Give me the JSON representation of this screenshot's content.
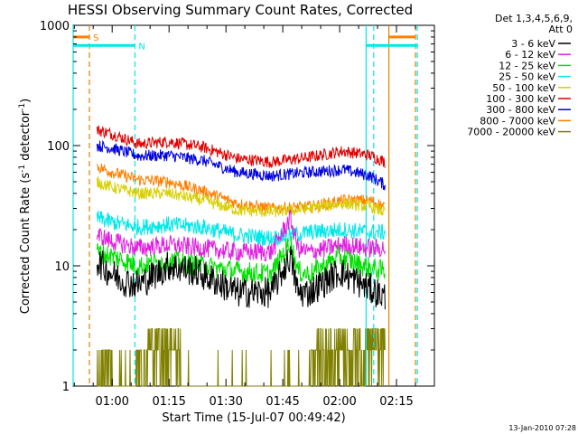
{
  "chart_data": {
    "type": "line",
    "title": "HESSI Observing Summary Count Rates, Corrected",
    "xlabel": "Start Time (15-Jul-07 00:49:42)",
    "ylabel_main": "Corrected Count Rate (s",
    "ylabel_sup1": "-1",
    "ylabel_mid": " detector",
    "ylabel_sup2": "-1",
    "ylabel_end": ")",
    "yscale": "log",
    "ylim": [
      1,
      1000
    ],
    "xlim": [
      "00:49:42",
      "02:25:00"
    ],
    "x_ticks": [
      "01:00",
      "01:15",
      "01:30",
      "01:45",
      "02:00",
      "02:15"
    ],
    "y_ticks": [
      "1",
      "10",
      "100",
      "1000"
    ],
    "footer_date": "13-Jan-2010 07:28",
    "legend": {
      "header1": "Det 1,3,4,5,6,9,",
      "header2": "Att 0",
      "placement": "right",
      "entries": [
        {
          "label": "3 - 6 keV",
          "color": "#000000"
        },
        {
          "label": "6 - 12 keV",
          "color": "#e020e0"
        },
        {
          "label": "12 - 25 keV",
          "color": "#00e000"
        },
        {
          "label": "25 - 50 keV",
          "color": "#00e8e8"
        },
        {
          "label": "50 - 100 keV",
          "color": "#d8d000"
        },
        {
          "label": "100 - 300 keV",
          "color": "#e00000"
        },
        {
          "label": "300 - 800 keV",
          "color": "#0000e0"
        },
        {
          "label": "800 - 7000 keV",
          "color": "#ff8000"
        },
        {
          "label": "7000 - 20000 keV",
          "color": "#808000"
        }
      ]
    },
    "time_range": [
      "00:56:00",
      "02:12:00"
    ],
    "series": [
      {
        "name": "100 - 300 keV",
        "color": "#e00000",
        "noise": 0.05,
        "knots": [
          [
            "00:56",
            135
          ],
          [
            "01:00",
            125
          ],
          [
            "01:07",
            103
          ],
          [
            "01:15",
            108
          ],
          [
            "01:24",
            97
          ],
          [
            "01:33",
            78
          ],
          [
            "01:42",
            73
          ],
          [
            "01:52",
            80
          ],
          [
            "02:01",
            90
          ],
          [
            "02:08",
            83
          ],
          [
            "02:12",
            73
          ]
        ]
      },
      {
        "name": "300 - 800 keV",
        "color": "#0000e0",
        "noise": 0.05,
        "knots": [
          [
            "00:56",
            100
          ],
          [
            "01:00",
            95
          ],
          [
            "01:07",
            82
          ],
          [
            "01:15",
            83
          ],
          [
            "01:24",
            75
          ],
          [
            "01:33",
            60
          ],
          [
            "01:42",
            56
          ],
          [
            "01:52",
            60
          ],
          [
            "02:01",
            63
          ],
          [
            "02:08",
            56
          ],
          [
            "02:12",
            47
          ]
        ]
      },
      {
        "name": "800 - 7000 keV",
        "color": "#ff8000",
        "noise": 0.05,
        "knots": [
          [
            "00:56",
            67
          ],
          [
            "01:00",
            60
          ],
          [
            "01:07",
            52
          ],
          [
            "01:15",
            50
          ],
          [
            "01:24",
            42
          ],
          [
            "01:33",
            33
          ],
          [
            "01:42",
            30
          ],
          [
            "01:52",
            31
          ],
          [
            "02:01",
            35
          ],
          [
            "02:08",
            35
          ],
          [
            "02:12",
            31
          ]
        ]
      },
      {
        "name": "50 - 100 keV",
        "color": "#d8d000",
        "noise": 0.05,
        "knots": [
          [
            "00:56",
            50
          ],
          [
            "01:00",
            45
          ],
          [
            "01:07",
            40
          ],
          [
            "01:15",
            40
          ],
          [
            "01:24",
            35
          ],
          [
            "01:33",
            29
          ],
          [
            "01:42",
            28
          ],
          [
            "01:52",
            30
          ],
          [
            "02:01",
            33
          ],
          [
            "02:08",
            31
          ],
          [
            "02:12",
            28
          ]
        ]
      },
      {
        "name": "25 - 50 keV",
        "color": "#00e8e8",
        "noise": 0.07,
        "knots": [
          [
            "00:56",
            25
          ],
          [
            "01:00",
            23
          ],
          [
            "01:07",
            21
          ],
          [
            "01:15",
            22
          ],
          [
            "01:24",
            21
          ],
          [
            "01:33",
            18
          ],
          [
            "01:42",
            17
          ],
          [
            "01:52",
            19
          ],
          [
            "02:01",
            20
          ],
          [
            "02:08",
            19
          ],
          [
            "02:12",
            19
          ]
        ]
      },
      {
        "name": "6 - 12 keV",
        "color": "#e020e0",
        "noise": 0.08,
        "knots": [
          [
            "00:56",
            18
          ],
          [
            "01:00",
            16
          ],
          [
            "01:07",
            14
          ],
          [
            "01:15",
            15
          ],
          [
            "01:24",
            14
          ],
          [
            "01:33",
            13
          ],
          [
            "01:42",
            13
          ],
          [
            "01:47",
            25
          ],
          [
            "01:49",
            14
          ],
          [
            "01:52",
            13
          ],
          [
            "02:01",
            15
          ],
          [
            "02:08",
            14
          ],
          [
            "02:12",
            14
          ]
        ]
      },
      {
        "name": "12 - 25 keV",
        "color": "#00e000",
        "noise": 0.09,
        "knots": [
          [
            "00:56",
            13
          ],
          [
            "01:00",
            12
          ],
          [
            "01:07",
            10
          ],
          [
            "01:15",
            11
          ],
          [
            "01:24",
            10
          ],
          [
            "01:33",
            9
          ],
          [
            "01:42",
            8.5
          ],
          [
            "01:47",
            16
          ],
          [
            "01:49",
            9
          ],
          [
            "01:52",
            8.5
          ],
          [
            "02:00",
            12
          ],
          [
            "02:06",
            10
          ],
          [
            "02:12",
            9
          ]
        ]
      },
      {
        "name": "3 - 6 keV",
        "color": "#000000",
        "noise": 0.13,
        "knots": [
          [
            "00:56",
            11
          ],
          [
            "00:59",
            9
          ],
          [
            "01:03",
            7.5
          ],
          [
            "01:07",
            7
          ],
          [
            "01:15",
            10
          ],
          [
            "01:22",
            9
          ],
          [
            "01:27",
            7.5
          ],
          [
            "01:33",
            6
          ],
          [
            "01:42",
            6
          ],
          [
            "01:47",
            12
          ],
          [
            "01:49",
            6
          ],
          [
            "01:52",
            6
          ],
          [
            "02:00",
            9
          ],
          [
            "02:06",
            7
          ],
          [
            "02:12",
            5.5
          ]
        ]
      }
    ],
    "attenuator_series": {
      "name": "7000 - 20000 keV",
      "color": "#808000",
      "levels": [
        1,
        2,
        3
      ],
      "dense_blocks": [
        [
          "00:56",
          "01:00"
        ],
        [
          "01:06",
          "01:13"
        ],
        [
          "01:13",
          "01:18"
        ],
        [
          "01:52",
          "02:01"
        ],
        [
          "02:01",
          "02:12"
        ]
      ],
      "high_blocks": [
        [
          "01:09",
          "01:18"
        ],
        [
          "01:54",
          "02:02"
        ],
        [
          "02:03",
          "02:12"
        ]
      ]
    },
    "vertical_markers": [
      {
        "time": "00:49:42",
        "color": "#00e8e8",
        "style": "solid"
      },
      {
        "time": "00:54:00",
        "color": "#e08000",
        "style": "dashed"
      },
      {
        "time": "01:06:00",
        "color": "#00e8e8",
        "style": "dashed"
      },
      {
        "time": "02:07:00",
        "color": "#00e8e8",
        "style": "solid"
      },
      {
        "time": "02:09:00",
        "color": "#00e8e8",
        "style": "dashed"
      },
      {
        "time": "02:13:00",
        "color": "#e08000",
        "style": "solid"
      },
      {
        "time": "02:20:00",
        "color": "#e08000",
        "style": "dashed"
      },
      {
        "time": "02:20:30",
        "color": "#00e8e8",
        "style": "dashed"
      }
    ],
    "bars": [
      {
        "label": "S",
        "color": "#ff8000",
        "value": 800,
        "segments": [
          [
            "00:49:42",
            "00:54:00"
          ],
          [
            "02:13:00",
            "02:20:00"
          ]
        ]
      },
      {
        "label": "N",
        "color": "#00e8e8",
        "value": 680,
        "segments": [
          [
            "00:49:42",
            "01:06:00"
          ],
          [
            "02:07:00",
            "02:20:30"
          ]
        ]
      }
    ]
  }
}
